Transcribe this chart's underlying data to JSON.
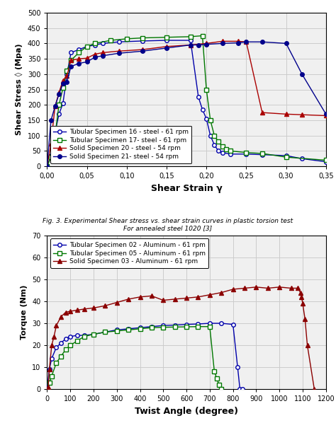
{
  "fig_title1": "Fig. 3. Experimental Shear stress vs. shear strain curves in plastic torsion test\nFor annealed steel 1020 [3]",
  "ax1": {
    "xlabel": "Shear Strain γ",
    "ylabel": "Shear Stress ◊ (Mpa)",
    "xlim": [
      0,
      0.35
    ],
    "ylim": [
      0,
      500
    ],
    "xticks": [
      0.0,
      0.05,
      0.1,
      0.15,
      0.2,
      0.25,
      0.3,
      0.35
    ],
    "yticks": [
      0,
      50,
      100,
      150,
      200,
      250,
      300,
      350,
      400,
      450,
      500
    ],
    "xticklabels": [
      "0,00",
      "0,05",
      "0,10",
      "0,15",
      "0,20",
      "0,25",
      "0,30",
      "0,35"
    ],
    "yticklabels": [
      "0",
      "50",
      "100",
      "150",
      "200",
      "250",
      "300",
      "350",
      "400",
      "450",
      "500"
    ],
    "curves": [
      {
        "label": "Tubular Specimen 16 - steel - 61 rpm",
        "color": "#0000AA",
        "marker": "o",
        "markerfacecolor": "white",
        "x": [
          0,
          0.005,
          0.01,
          0.015,
          0.02,
          0.025,
          0.03,
          0.04,
          0.05,
          0.06,
          0.07,
          0.09,
          0.12,
          0.15,
          0.18,
          0.19,
          0.195,
          0.2,
          0.205,
          0.21,
          0.215,
          0.22,
          0.23,
          0.25,
          0.27,
          0.3,
          0.32,
          0.35
        ],
        "y": [
          0,
          35,
          110,
          170,
          205,
          300,
          370,
          380,
          390,
          395,
          400,
          405,
          408,
          410,
          410,
          225,
          185,
          155,
          100,
          70,
          50,
          45,
          40,
          40,
          38,
          35,
          25,
          15
        ]
      },
      {
        "label": "Tubular Specimen 17- steel - 61 rpm",
        "color": "#007700",
        "marker": "s",
        "markerfacecolor": "white",
        "x": [
          0,
          0.005,
          0.01,
          0.015,
          0.02,
          0.025,
          0.03,
          0.04,
          0.05,
          0.06,
          0.08,
          0.1,
          0.12,
          0.15,
          0.18,
          0.195,
          0.2,
          0.205,
          0.21,
          0.215,
          0.22,
          0.225,
          0.23,
          0.25,
          0.27,
          0.3,
          0.35
        ],
        "y": [
          0,
          30,
          100,
          200,
          255,
          310,
          345,
          370,
          390,
          400,
          410,
          415,
          418,
          420,
          422,
          425,
          250,
          150,
          100,
          80,
          65,
          55,
          50,
          45,
          42,
          30,
          20
        ]
      },
      {
        "label": "Solid Specimen 20 - steel - 54 rpm",
        "color": "#AA0000",
        "marker": "^",
        "markerfacecolor": "#AA0000",
        "x": [
          0,
          0.005,
          0.01,
          0.015,
          0.02,
          0.025,
          0.03,
          0.04,
          0.05,
          0.06,
          0.07,
          0.09,
          0.12,
          0.15,
          0.18,
          0.2,
          0.22,
          0.24,
          0.25,
          0.27,
          0.3,
          0.32,
          0.35
        ],
        "y": [
          0,
          75,
          195,
          240,
          280,
          295,
          345,
          350,
          352,
          365,
          370,
          375,
          380,
          390,
          395,
          400,
          407,
          407,
          405,
          175,
          170,
          168,
          165
        ]
      },
      {
        "label": "Solid Specimen 21- steel - 54 rpm",
        "color": "#00008B",
        "marker": "o",
        "markerfacecolor": "#00008B",
        "x": [
          0,
          0.005,
          0.01,
          0.015,
          0.02,
          0.025,
          0.03,
          0.04,
          0.05,
          0.06,
          0.07,
          0.09,
          0.12,
          0.15,
          0.18,
          0.19,
          0.2,
          0.22,
          0.24,
          0.25,
          0.27,
          0.3,
          0.32,
          0.35
        ],
        "y": [
          0,
          150,
          195,
          235,
          270,
          275,
          325,
          335,
          340,
          355,
          360,
          368,
          375,
          385,
          395,
          395,
          397,
          400,
          402,
          405,
          405,
          400,
          300,
          170
        ]
      }
    ]
  },
  "ax2": {
    "xlabel": "Twist Angle (degree)",
    "ylabel": "Torque (Nm)",
    "xlim": [
      0,
      1200
    ],
    "ylim": [
      0,
      70
    ],
    "xticks": [
      0,
      100,
      200,
      300,
      400,
      500,
      600,
      700,
      800,
      900,
      1000,
      1100,
      1200
    ],
    "yticks": [
      0,
      10,
      20,
      30,
      40,
      50,
      60,
      70
    ],
    "curves": [
      {
        "label": "Tubular Specimen 02 - Aluminum - 61 rpm",
        "color": "#0000AA",
        "marker": "o",
        "markerfacecolor": "white",
        "x": [
          0,
          10,
          20,
          40,
          60,
          80,
          100,
          130,
          160,
          200,
          250,
          300,
          350,
          400,
          450,
          500,
          550,
          600,
          650,
          700,
          750,
          800,
          820,
          830,
          840
        ],
        "y": [
          0,
          9,
          14,
          19,
          21,
          23,
          24,
          24.5,
          24.5,
          25,
          26,
          27,
          27.5,
          28,
          28.5,
          29,
          29.2,
          29.5,
          29.7,
          30,
          30,
          29.5,
          10,
          0,
          0
        ]
      },
      {
        "label": "Tubular Specimen 05 - Aluminum - 61 rpm",
        "color": "#007700",
        "marker": "s",
        "markerfacecolor": "white",
        "x": [
          0,
          10,
          20,
          40,
          60,
          80,
          100,
          130,
          160,
          200,
          250,
          300,
          350,
          400,
          450,
          500,
          550,
          600,
          650,
          700,
          720,
          730,
          740,
          750
        ],
        "y": [
          0,
          3,
          6,
          12,
          15,
          18,
          20,
          22,
          24,
          25,
          26,
          26.5,
          27,
          27.5,
          28,
          28.2,
          28.3,
          28.4,
          28.5,
          28.5,
          8,
          5,
          2,
          0
        ]
      },
      {
        "label": "Solid Specimen 03 - Aluminum - 61 rpm",
        "color": "#8B0000",
        "marker": "^",
        "markerfacecolor": "#8B0000",
        "x": [
          0,
          5,
          10,
          20,
          30,
          40,
          60,
          80,
          100,
          130,
          160,
          200,
          250,
          300,
          350,
          400,
          450,
          500,
          550,
          600,
          650,
          700,
          750,
          800,
          850,
          900,
          950,
          1000,
          1050,
          1080,
          1090,
          1095,
          1100,
          1110,
          1120,
          1150
        ],
        "y": [
          0,
          1,
          9,
          20,
          24,
          29,
          33,
          35,
          35.5,
          36,
          36.5,
          37,
          38,
          39.5,
          41,
          42,
          42.5,
          40.5,
          41,
          41.5,
          42,
          43,
          44,
          45.5,
          46,
          46.5,
          46,
          46.5,
          46,
          46,
          44,
          42,
          39,
          32,
          20,
          0
        ]
      }
    ]
  },
  "background_color": "#f0f0f0",
  "grid_color": "#cccccc"
}
